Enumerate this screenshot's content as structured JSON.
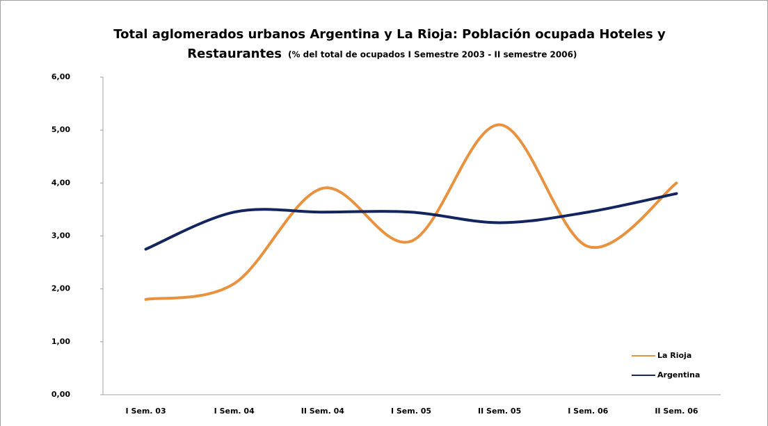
{
  "chart_data": {
    "type": "line",
    "title": [
      "Total aglomerados urbanos Argentina  y La Rioja: Población ocupada Hoteles y",
      "Restaurantes"
    ],
    "subtitle": "(% del total de ocupados  I Semestre 2003 - II semestre 2006)",
    "categories": [
      "I Sem. 03",
      "I Sem. 04",
      "II Sem. 04",
      "I Sem. 05",
      "II Sem. 05",
      "I Sem. 06",
      "II Sem. 06"
    ],
    "series": [
      {
        "name": "La Rioja",
        "color": "#e8913f",
        "values": [
          1.8,
          2.1,
          3.9,
          2.9,
          5.1,
          2.8,
          4.0
        ]
      },
      {
        "name": "Argentina",
        "color": "#13255e",
        "values": [
          2.75,
          3.45,
          3.45,
          3.45,
          3.25,
          3.45,
          3.8
        ]
      }
    ],
    "ylim": [
      0,
      6
    ],
    "yticks": [
      {
        "value": 0,
        "label": "0,00"
      },
      {
        "value": 1,
        "label": "1,00"
      },
      {
        "value": 2,
        "label": "2,00"
      },
      {
        "value": 3,
        "label": "3,00"
      },
      {
        "value": 4,
        "label": "4,00"
      },
      {
        "value": 5,
        "label": "5,00"
      },
      {
        "value": 6,
        "label": "6,00"
      }
    ],
    "smooth": true,
    "legend": "right"
  }
}
